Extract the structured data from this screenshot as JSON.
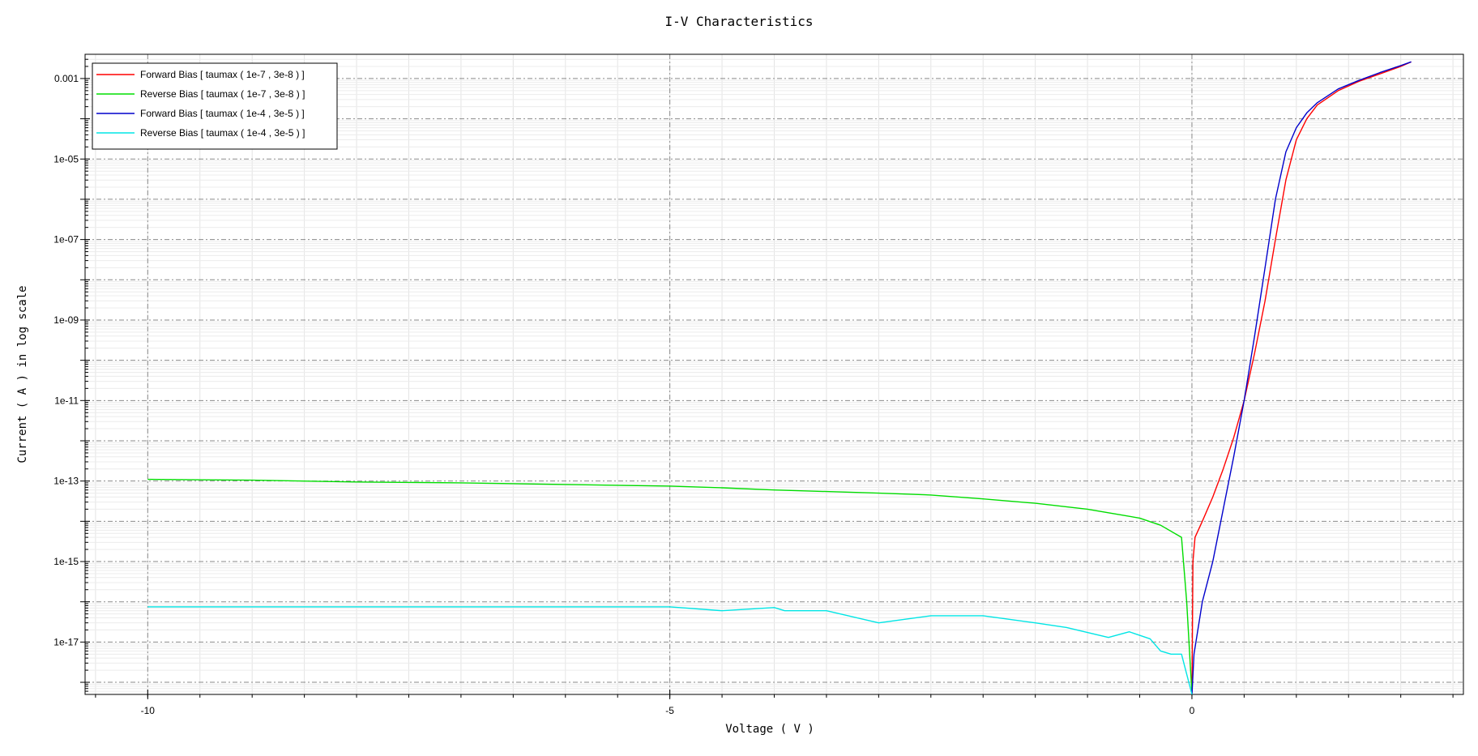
{
  "chart_data": {
    "type": "line",
    "title": "I-V Characteristics",
    "xlabel": "Voltage ( V )",
    "ylabel": "Current ( A ) in log scale",
    "yscale": "log",
    "xlim": [
      -10.6,
      2.6
    ],
    "ylim": [
      5e-19,
      0.004
    ],
    "grid": true,
    "legend_position": "top-left",
    "x_ticks": [
      {
        "value": -10,
        "label": "-10"
      },
      {
        "value": -5,
        "label": "-5"
      },
      {
        "value": 0,
        "label": "0"
      }
    ],
    "y_ticks": [
      {
        "value": 0.001,
        "label": "0.001"
      },
      {
        "value": 1e-05,
        "label": "1e-05"
      },
      {
        "value": 1e-07,
        "label": "1e-07"
      },
      {
        "value": 1e-09,
        "label": "1e-09"
      },
      {
        "value": 1e-11,
        "label": "1e-11"
      },
      {
        "value": 1e-13,
        "label": "1e-13"
      },
      {
        "value": 1e-15,
        "label": "1e-15"
      },
      {
        "value": 1e-17,
        "label": "1e-17"
      }
    ],
    "series": [
      {
        "name": "Forward Bias [ taumax ( 1e-7 , 3e-8 ) ]",
        "color": "#ff0000",
        "points": [
          [
            0.0,
            5e-19
          ],
          [
            0.01,
            1e-15
          ],
          [
            0.03,
            4e-15
          ],
          [
            0.1,
            1e-14
          ],
          [
            0.2,
            4e-14
          ],
          [
            0.3,
            2e-13
          ],
          [
            0.4,
            1.2e-12
          ],
          [
            0.5,
            1e-11
          ],
          [
            0.6,
            1.5e-10
          ],
          [
            0.7,
            3e-09
          ],
          [
            0.8,
            1e-07
          ],
          [
            0.9,
            3e-06
          ],
          [
            1.0,
            3e-05
          ],
          [
            1.1,
            0.0001
          ],
          [
            1.2,
            0.00022
          ],
          [
            1.4,
            0.0005
          ],
          [
            1.6,
            0.00085
          ],
          [
            1.8,
            0.0013
          ],
          [
            2.0,
            0.002
          ],
          [
            2.1,
            0.0026
          ]
        ]
      },
      {
        "name": "Reverse Bias [ taumax ( 1e-7 , 3e-8 ) ]",
        "color": "#00dd00",
        "points": [
          [
            -10,
            1.1e-13
          ],
          [
            -9,
            1.05e-13
          ],
          [
            -8,
            9.5e-14
          ],
          [
            -7,
            9e-14
          ],
          [
            -6,
            8.2e-14
          ],
          [
            -5,
            7.5e-14
          ],
          [
            -4.5,
            6.8e-14
          ],
          [
            -4,
            6e-14
          ],
          [
            -3.5,
            5.5e-14
          ],
          [
            -3,
            5e-14
          ],
          [
            -2.5,
            4.5e-14
          ],
          [
            -2,
            3.6e-14
          ],
          [
            -1.5,
            2.8e-14
          ],
          [
            -1,
            2e-14
          ],
          [
            -0.5,
            1.2e-14
          ],
          [
            -0.3,
            8e-15
          ],
          [
            -0.1,
            4e-15
          ],
          [
            -0.05,
            1e-16
          ],
          [
            0,
            5e-19
          ]
        ]
      },
      {
        "name": "Forward Bias [ taumax ( 1e-4 , 3e-5 ) ]",
        "color": "#0000cc",
        "points": [
          [
            0.0,
            5e-19
          ],
          [
            0.02,
            5e-18
          ],
          [
            0.1,
            1e-16
          ],
          [
            0.2,
            1e-15
          ],
          [
            0.3,
            2e-14
          ],
          [
            0.4,
            4e-13
          ],
          [
            0.5,
            1e-11
          ],
          [
            0.6,
            4e-10
          ],
          [
            0.7,
            2e-08
          ],
          [
            0.8,
            1e-06
          ],
          [
            0.9,
            1.5e-05
          ],
          [
            1.0,
            6e-05
          ],
          [
            1.1,
            0.00014
          ],
          [
            1.2,
            0.00025
          ],
          [
            1.4,
            0.00055
          ],
          [
            1.6,
            0.0009
          ],
          [
            1.8,
            0.0014
          ],
          [
            2.0,
            0.0021
          ],
          [
            2.1,
            0.0026
          ]
        ]
      },
      {
        "name": "Reverse Bias [ taumax ( 1e-4 , 3e-5 ) ]",
        "color": "#00e5e5",
        "points": [
          [
            -10,
            7.5e-17
          ],
          [
            -8,
            7.5e-17
          ],
          [
            -6,
            7.5e-17
          ],
          [
            -5,
            7.5e-17
          ],
          [
            -4.5,
            6e-17
          ],
          [
            -4,
            7.2e-17
          ],
          [
            -3.9,
            6e-17
          ],
          [
            -3.5,
            6e-17
          ],
          [
            -3,
            3e-17
          ],
          [
            -2.5,
            4.5e-17
          ],
          [
            -2,
            4.5e-17
          ],
          [
            -1.5,
            3e-17
          ],
          [
            -1.2,
            2.3e-17
          ],
          [
            -0.8,
            1.3e-17
          ],
          [
            -0.6,
            1.8e-17
          ],
          [
            -0.4,
            1.2e-17
          ],
          [
            -0.3,
            6e-18
          ],
          [
            -0.2,
            5e-18
          ],
          [
            -0.1,
            5e-18
          ],
          [
            0,
            5e-19
          ]
        ]
      }
    ]
  }
}
